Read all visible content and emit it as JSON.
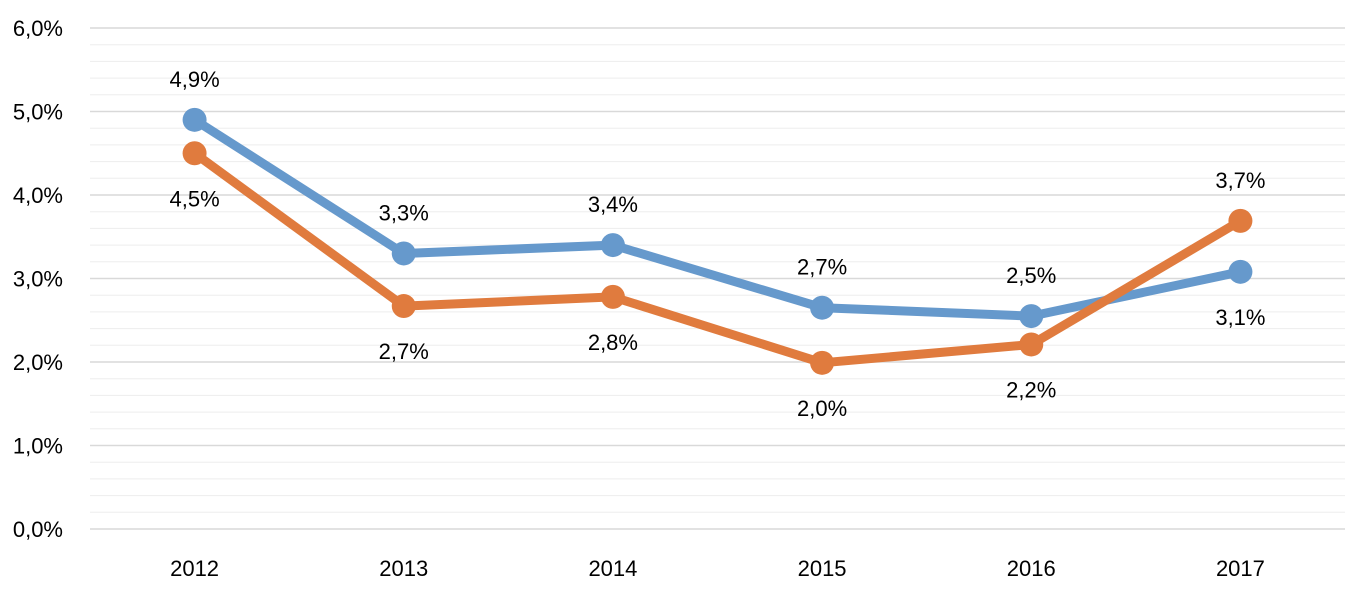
{
  "chart_data": {
    "type": "line",
    "title": "",
    "xlabel": "",
    "ylabel": "",
    "categories": [
      "2012",
      "2013",
      "2014",
      "2015",
      "2016",
      "2017"
    ],
    "ylim": [
      0,
      6
    ],
    "y_ticks": [
      0,
      1,
      2,
      3,
      4,
      5,
      6
    ],
    "y_tick_labels": [
      "0,0%",
      "1,0%",
      "2,0%",
      "3,0%",
      "4,0%",
      "5,0%",
      "6,0%"
    ],
    "grid": "horizontal, with minor gridlines",
    "legend": "none",
    "series": [
      {
        "color": "#6699cc",
        "values": [
          4.9,
          3.3,
          3.4,
          2.65,
          2.55,
          3.08
        ],
        "data_labels": [
          "4,9%",
          "3,3%",
          "3,4%",
          "2,7%",
          "2,5%",
          "3,1%"
        ],
        "label_positions": [
          "above",
          "above",
          "above",
          "above",
          "above",
          "below"
        ]
      },
      {
        "color": "#e07b3e",
        "values": [
          4.5,
          2.67,
          2.78,
          1.99,
          2.21,
          3.69
        ],
        "data_labels": [
          "4,5%",
          "2,7%",
          "2,8%",
          "2,0%",
          "2,2%",
          "3,7%"
        ],
        "label_positions": [
          "below",
          "below",
          "below",
          "below",
          "below",
          "above"
        ]
      }
    ]
  }
}
